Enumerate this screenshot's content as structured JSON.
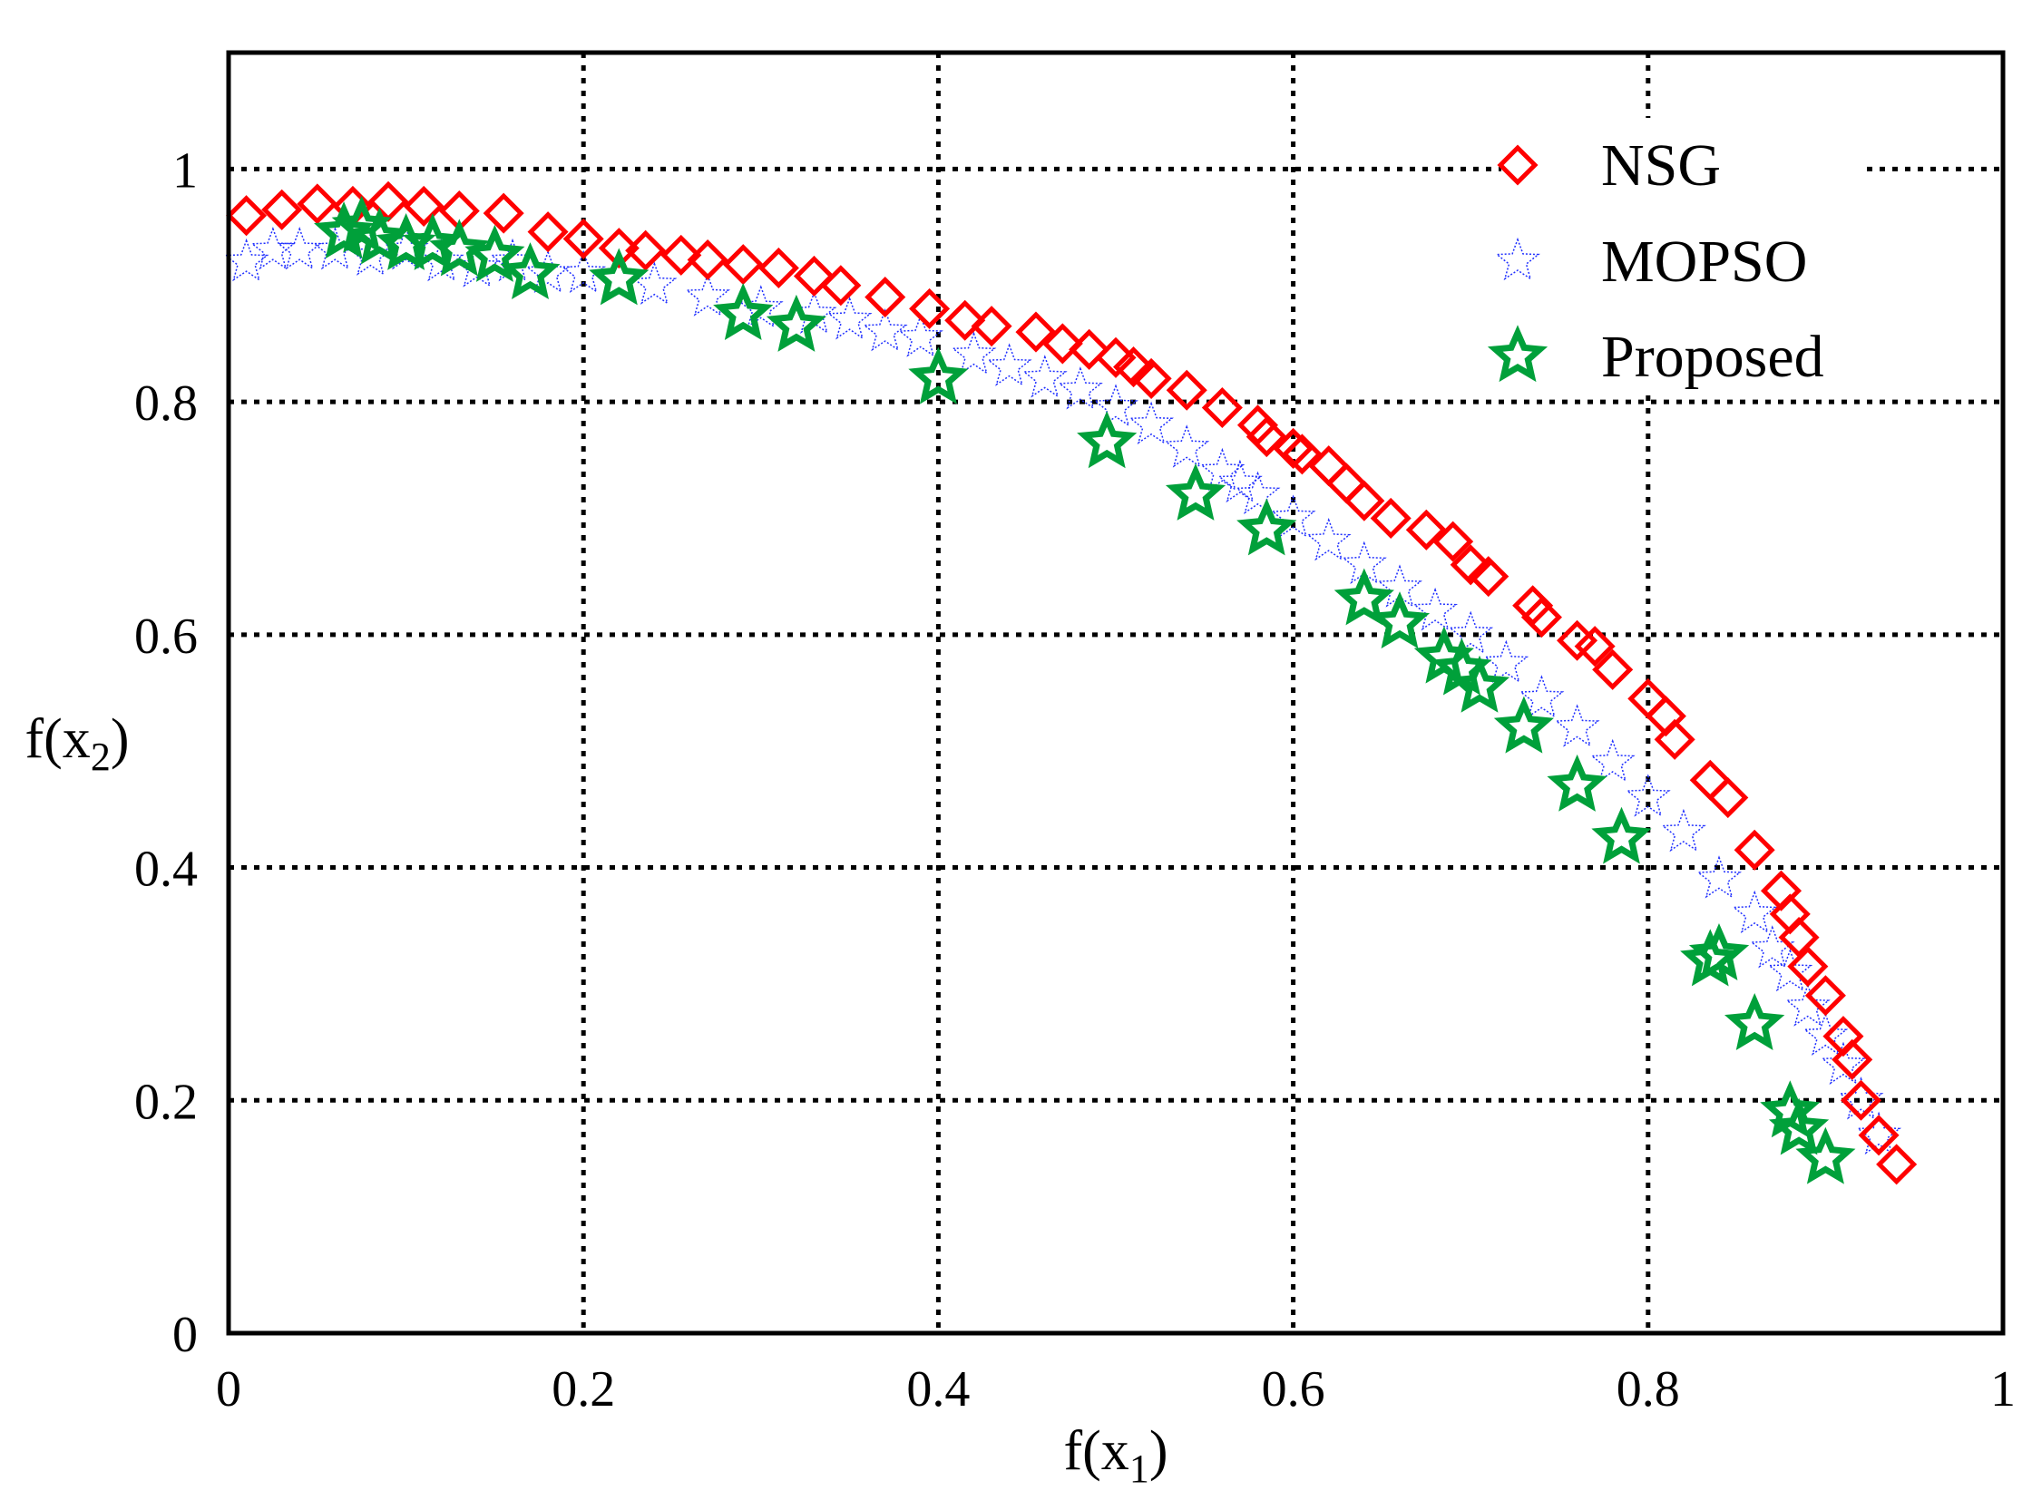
{
  "chart_data": {
    "type": "scatter",
    "xlabel": "f(x",
    "xlabel_sub": "1",
    "xlabel_end": ")",
    "ylabel": "f(x",
    "ylabel_sub": "2",
    "ylabel_end": ")",
    "xlim": [
      0,
      1
    ],
    "ylim": [
      0,
      1.1
    ],
    "grid": true,
    "legend_position": "top-right",
    "x_ticks": [
      0,
      0.2,
      0.4,
      0.6,
      0.8,
      1
    ],
    "x_tick_labels": [
      "0",
      "0.2",
      "0.4",
      "0.6",
      "0.8",
      "1"
    ],
    "y_ticks": [
      0,
      0.2,
      0.4,
      0.6,
      0.8,
      1
    ],
    "y_tick_labels": [
      "0",
      "0.2",
      "0.4",
      "0.6",
      "0.8",
      "1"
    ],
    "series": [
      {
        "name": "NSG",
        "marker": "diamond",
        "color": "#ff0000",
        "x": [
          0.01,
          0.03,
          0.05,
          0.07,
          0.09,
          0.11,
          0.13,
          0.155,
          0.18,
          0.2,
          0.22,
          0.235,
          0.255,
          0.27,
          0.29,
          0.31,
          0.33,
          0.345,
          0.37,
          0.395,
          0.415,
          0.43,
          0.455,
          0.47,
          0.485,
          0.5,
          0.51,
          0.52,
          0.54,
          0.56,
          0.58,
          0.585,
          0.6,
          0.605,
          0.62,
          0.63,
          0.64,
          0.655,
          0.675,
          0.69,
          0.7,
          0.71,
          0.735,
          0.74,
          0.76,
          0.77,
          0.78,
          0.8,
          0.81,
          0.815,
          0.835,
          0.845,
          0.86,
          0.875,
          0.88,
          0.885,
          0.89,
          0.9,
          0.91,
          0.915,
          0.92,
          0.93,
          0.94
        ],
        "y": [
          0.96,
          0.965,
          0.97,
          0.968,
          0.972,
          0.968,
          0.964,
          0.962,
          0.946,
          0.94,
          0.932,
          0.93,
          0.926,
          0.922,
          0.918,
          0.915,
          0.908,
          0.9,
          0.89,
          0.88,
          0.87,
          0.865,
          0.86,
          0.85,
          0.845,
          0.838,
          0.83,
          0.82,
          0.81,
          0.795,
          0.78,
          0.77,
          0.76,
          0.755,
          0.745,
          0.73,
          0.715,
          0.7,
          0.69,
          0.68,
          0.66,
          0.65,
          0.625,
          0.615,
          0.595,
          0.59,
          0.57,
          0.545,
          0.53,
          0.51,
          0.475,
          0.46,
          0.415,
          0.38,
          0.36,
          0.34,
          0.315,
          0.29,
          0.255,
          0.235,
          0.2,
          0.17,
          0.145
        ]
      },
      {
        "name": "MOPSO",
        "marker": "star-thin",
        "color": "#2030ff",
        "x": [
          0.01,
          0.025,
          0.04,
          0.06,
          0.08,
          0.1,
          0.12,
          0.14,
          0.16,
          0.18,
          0.2,
          0.24,
          0.27,
          0.3,
          0.33,
          0.35,
          0.37,
          0.39,
          0.42,
          0.44,
          0.46,
          0.48,
          0.5,
          0.52,
          0.54,
          0.56,
          0.57,
          0.58,
          0.6,
          0.62,
          0.64,
          0.66,
          0.68,
          0.7,
          0.72,
          0.74,
          0.76,
          0.78,
          0.8,
          0.82,
          0.84,
          0.86,
          0.87,
          0.88,
          0.89,
          0.9,
          0.91,
          0.92,
          0.93
        ],
        "y": [
          0.92,
          0.93,
          0.93,
          0.93,
          0.925,
          0.93,
          0.92,
          0.915,
          0.92,
          0.91,
          0.91,
          0.9,
          0.89,
          0.88,
          0.875,
          0.87,
          0.86,
          0.855,
          0.84,
          0.83,
          0.82,
          0.81,
          0.795,
          0.78,
          0.76,
          0.74,
          0.73,
          0.72,
          0.7,
          0.68,
          0.66,
          0.64,
          0.62,
          0.6,
          0.575,
          0.545,
          0.52,
          0.49,
          0.46,
          0.43,
          0.39,
          0.36,
          0.33,
          0.31,
          0.28,
          0.255,
          0.23,
          0.2,
          0.17
        ]
      },
      {
        "name": "Proposed",
        "marker": "star-bold",
        "color": "#00a03a",
        "x": [
          0.065,
          0.075,
          0.085,
          0.1,
          0.115,
          0.13,
          0.15,
          0.17,
          0.22,
          0.29,
          0.32,
          0.4,
          0.495,
          0.545,
          0.585,
          0.64,
          0.66,
          0.685,
          0.695,
          0.705,
          0.73,
          0.76,
          0.785,
          0.835,
          0.84,
          0.86,
          0.88,
          0.885,
          0.9
        ],
        "y": [
          0.945,
          0.95,
          0.94,
          0.935,
          0.935,
          0.93,
          0.925,
          0.91,
          0.905,
          0.875,
          0.865,
          0.82,
          0.765,
          0.72,
          0.69,
          0.63,
          0.61,
          0.58,
          0.57,
          0.555,
          0.52,
          0.47,
          0.425,
          0.32,
          0.325,
          0.265,
          0.19,
          0.175,
          0.15
        ]
      }
    ]
  }
}
